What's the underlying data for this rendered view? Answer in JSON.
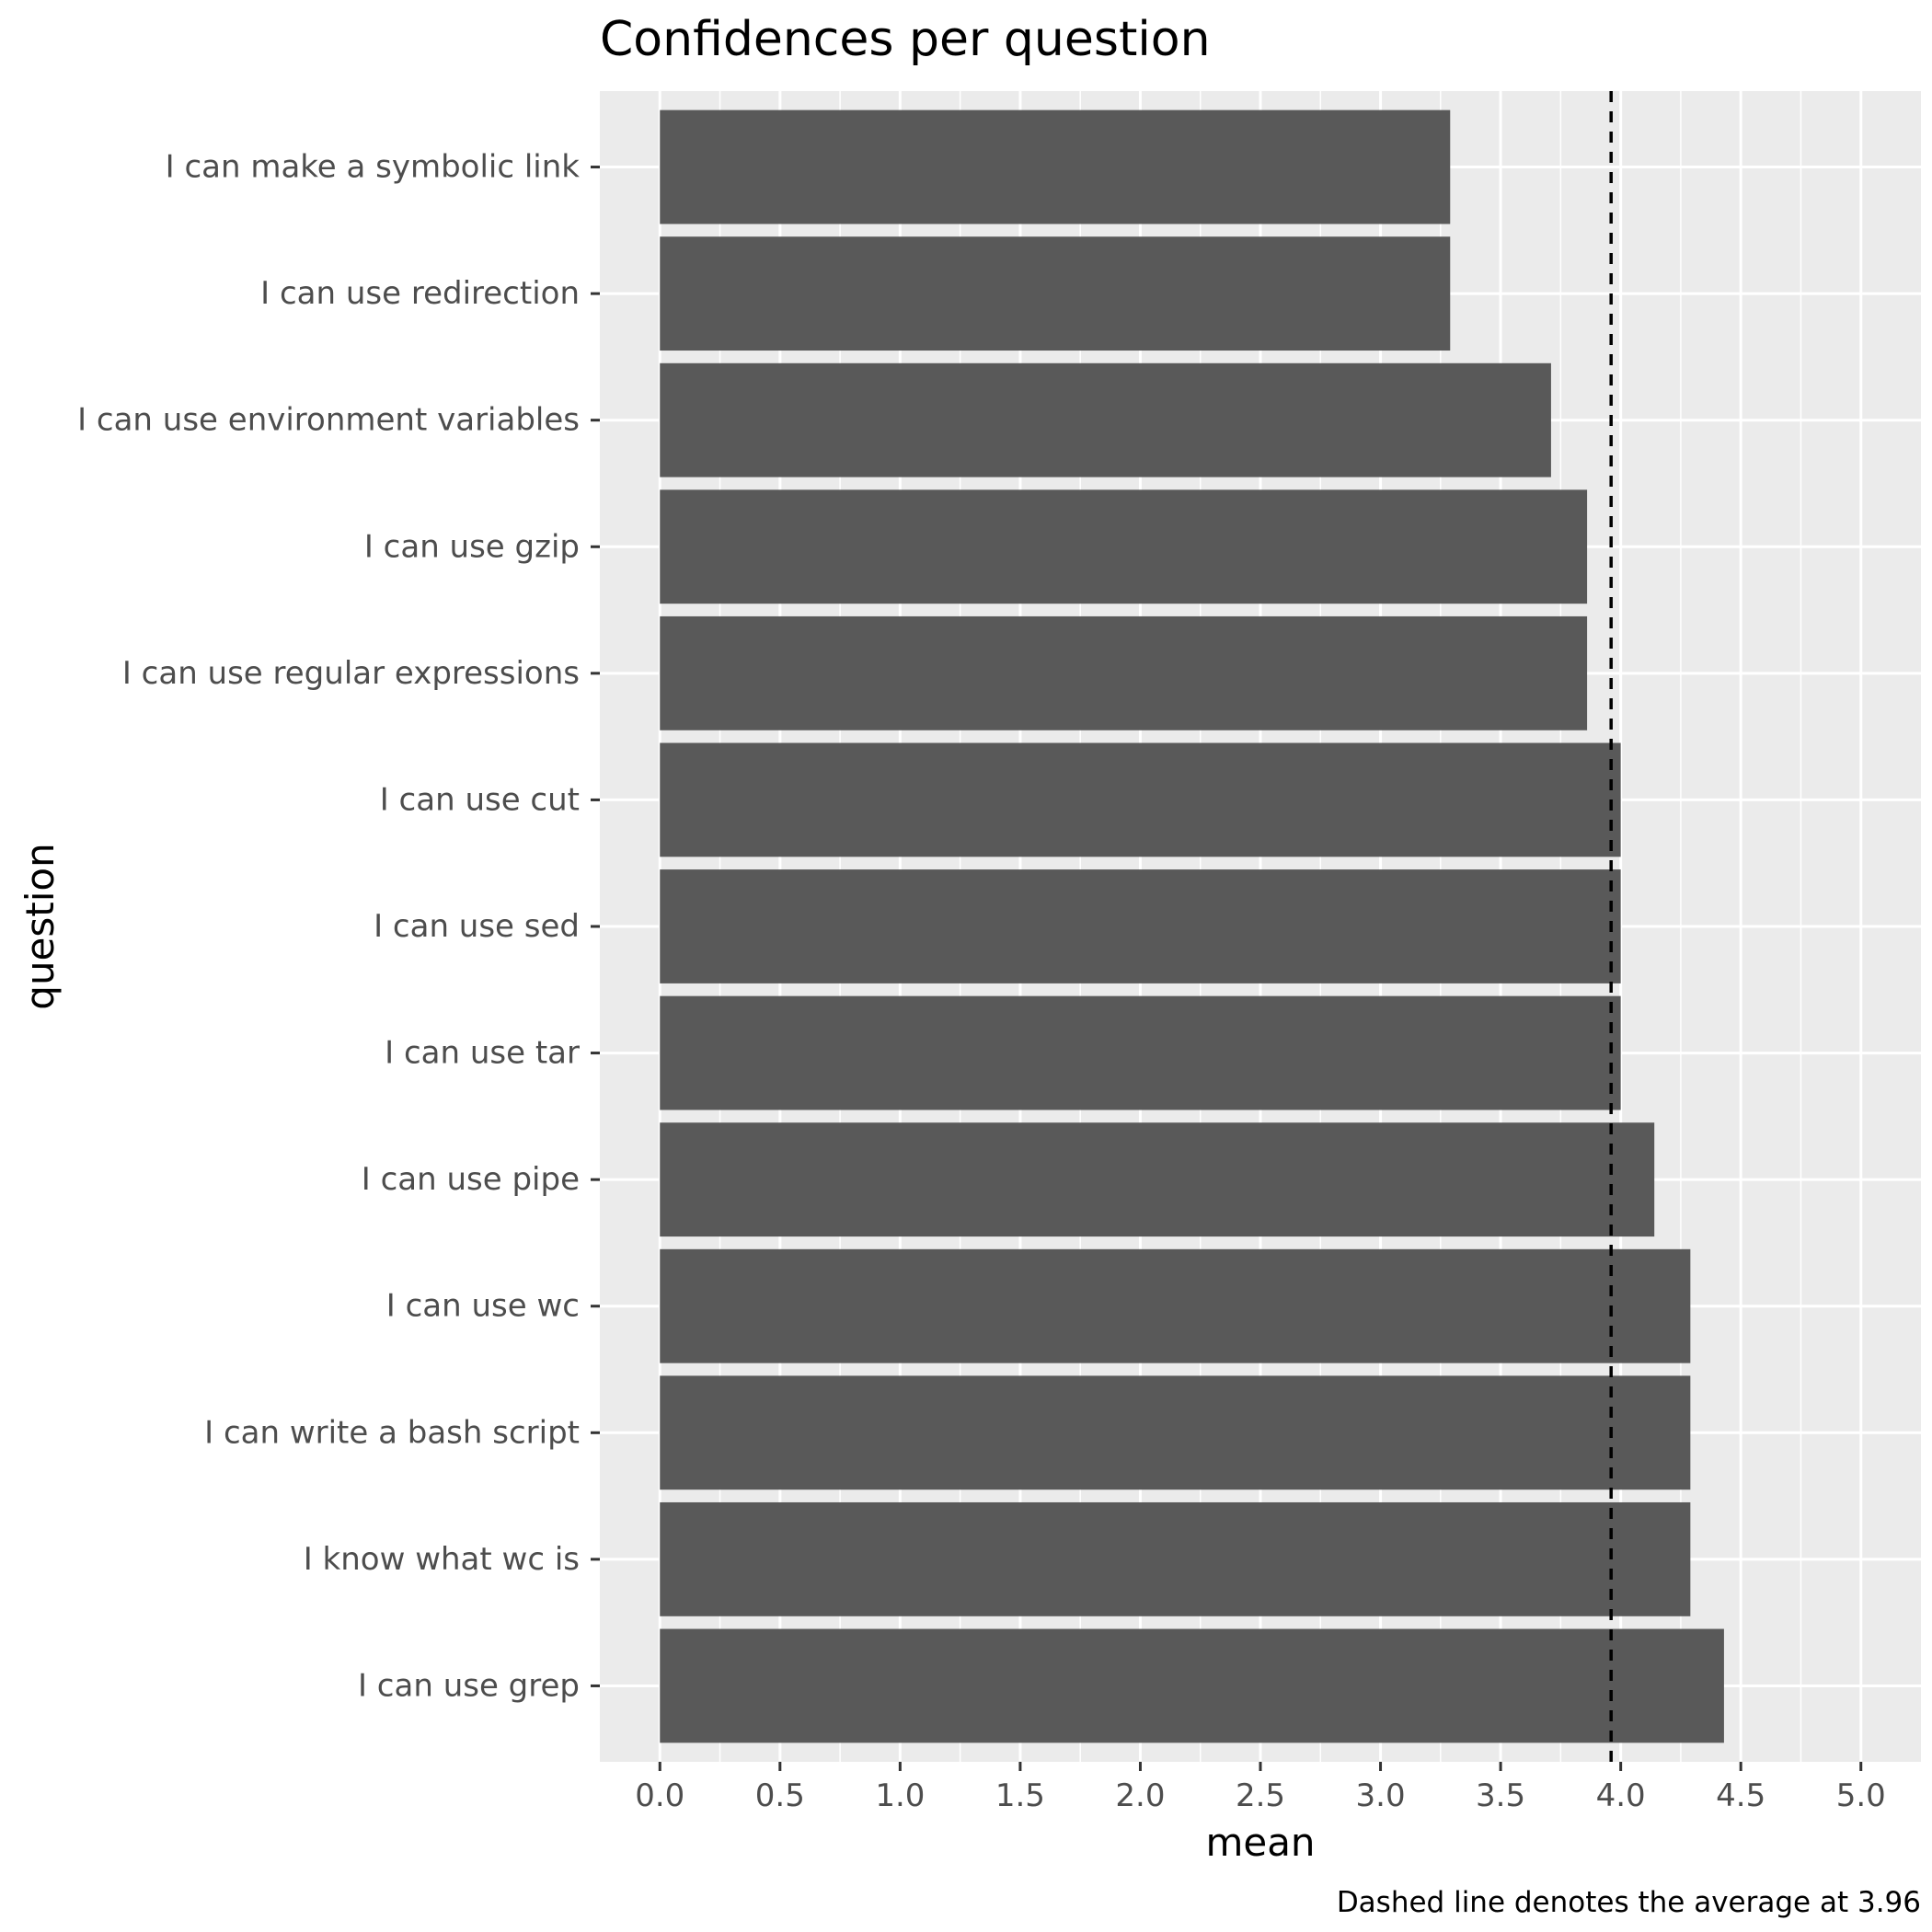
{
  "chart_data": {
    "type": "bar",
    "orientation": "horizontal",
    "title": "Confidences per question",
    "xlabel": "mean",
    "ylabel": "question",
    "caption": "Dashed line denotes the average at 3.96",
    "categories": [
      "I can make a symbolic link",
      "I can use redirection",
      "I can use environment variables",
      "I can use gzip",
      "I can use regular expressions",
      "I can use cut",
      "I can use sed",
      "I can use tar",
      "I can use pipe",
      "I can use wc",
      "I can write a bash script",
      "I know what wc is",
      "I can use grep"
    ],
    "values": [
      3.29,
      3.29,
      3.71,
      3.86,
      3.86,
      4.0,
      4.0,
      4.0,
      4.14,
      4.29,
      4.29,
      4.29,
      4.43
    ],
    "reference_line": {
      "value": 3.96,
      "style": "dashed"
    },
    "xlim": [
      -0.25,
      5.25
    ],
    "xticks": [
      "0.0",
      "0.5",
      "1.0",
      "1.5",
      "2.0",
      "2.5",
      "3.0",
      "3.5",
      "4.0",
      "4.5",
      "5.0"
    ],
    "grid": true,
    "colors": {
      "bar": "#595959",
      "panel": "#ebebeb",
      "grid": "#ffffff",
      "reference_line": "#000000"
    }
  }
}
